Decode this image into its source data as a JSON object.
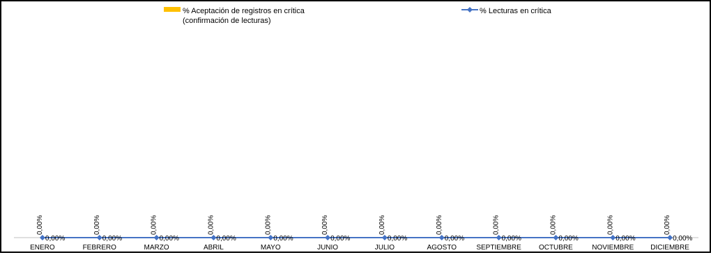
{
  "chart_data": {
    "type": "bar+line",
    "categories": [
      "ENERO",
      "FEBRERO",
      "MARZO",
      "ABRIL",
      "MAYO",
      "JUNIO",
      "JULIO",
      "AGOSTO",
      "SEPTIEMBRE",
      "OCTUBRE",
      "NOVIEMBRE",
      "DICIEMBRE"
    ],
    "series": [
      {
        "name": "% Aceptación de registros en crítica (confirmación de lecturas)",
        "name_lines": [
          "% Aceptación de registros en crítica",
          "(confirmación de lecturas)"
        ],
        "type": "bar",
        "color": "#FFC000",
        "values": [
          0,
          0,
          0,
          0,
          0,
          0,
          0,
          0,
          0,
          0,
          0,
          0
        ],
        "labels": [
          "0,00%",
          "0,00%",
          "0,00%",
          "0,00%",
          "0,00%",
          "0,00%",
          "0,00%",
          "0,00%",
          "0,00%",
          "0,00%",
          "0,00%",
          "0,00%"
        ]
      },
      {
        "name": "% Lecturas en crítica",
        "type": "line",
        "color": "#4472C4",
        "values": [
          0,
          0,
          0,
          0,
          0,
          0,
          0,
          0,
          0,
          0,
          0,
          0
        ],
        "labels": [
          "0,00%",
          "0,00%",
          "0,00%",
          "0,00%",
          "0,00%",
          "0,00%",
          "0,00%",
          "0,00%",
          "0,00%",
          "0,00%",
          "0,00%",
          "0,00%"
        ]
      }
    ],
    "legend_position": "top",
    "grid": false
  }
}
